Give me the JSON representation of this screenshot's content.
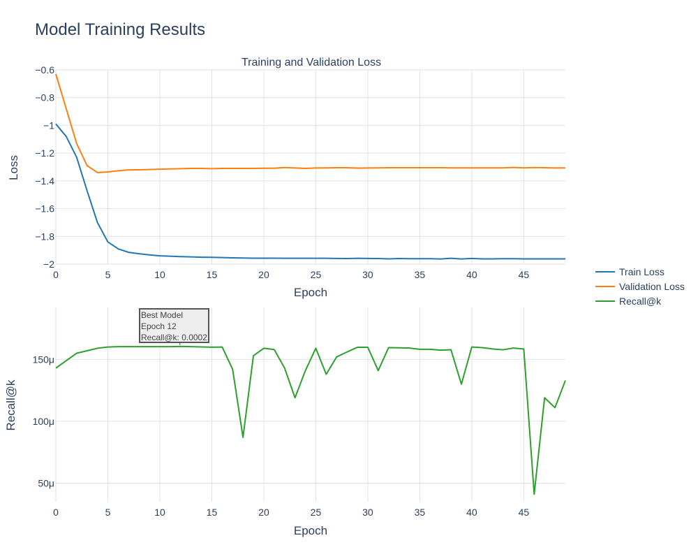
{
  "page": {
    "title": "Model Training Results"
  },
  "legend": {
    "placement": "right"
  },
  "chart_data": [
    {
      "type": "line",
      "title": "Training and Validation Loss",
      "xlabel": "Epoch",
      "ylabel": "Loss",
      "xlim": [
        0,
        49
      ],
      "ylim": [
        -2.0,
        -0.6
      ],
      "xticks": [
        0,
        5,
        10,
        15,
        20,
        25,
        30,
        35,
        40,
        45
      ],
      "xtick_labels": [
        "0",
        "5",
        "10",
        "15",
        "20",
        "25",
        "30",
        "35",
        "40",
        "45"
      ],
      "yticks": [
        -2.0,
        -1.8,
        -1.6,
        -1.4,
        -1.2,
        -1.0,
        -0.8,
        -0.6
      ],
      "ytick_labels": [
        "−2",
        "−1.8",
        "−1.6",
        "−1.4",
        "−1.2",
        "−1",
        "−0.8",
        "−0.6"
      ],
      "grid": true,
      "x": [
        0,
        1,
        2,
        3,
        4,
        5,
        6,
        7,
        8,
        9,
        10,
        11,
        12,
        13,
        14,
        15,
        16,
        17,
        18,
        19,
        20,
        21,
        22,
        23,
        24,
        25,
        26,
        27,
        28,
        29,
        30,
        31,
        32,
        33,
        34,
        35,
        36,
        37,
        38,
        39,
        40,
        41,
        42,
        43,
        44,
        45,
        46,
        47,
        48,
        49
      ],
      "series": [
        {
          "name": "Train Loss",
          "color": "#1f77b4",
          "values": [
            -0.99,
            -1.08,
            -1.23,
            -1.47,
            -1.7,
            -1.84,
            -1.89,
            -1.915,
            -1.925,
            -1.933,
            -1.94,
            -1.943,
            -1.946,
            -1.948,
            -1.95,
            -1.951,
            -1.953,
            -1.955,
            -1.956,
            -1.957,
            -1.957,
            -1.957,
            -1.958,
            -1.958,
            -1.958,
            -1.958,
            -1.958,
            -1.959,
            -1.96,
            -1.958,
            -1.959,
            -1.96,
            -1.962,
            -1.96,
            -1.961,
            -1.961,
            -1.961,
            -1.963,
            -1.958,
            -1.963,
            -1.959,
            -1.962,
            -1.962,
            -1.961,
            -1.961,
            -1.962,
            -1.962,
            -1.962,
            -1.962,
            -1.962
          ]
        },
        {
          "name": "Validation Loss",
          "color": "#ff7f0e",
          "values": [
            -0.63,
            -0.88,
            -1.13,
            -1.29,
            -1.34,
            -1.335,
            -1.327,
            -1.321,
            -1.32,
            -1.318,
            -1.316,
            -1.314,
            -1.312,
            -1.31,
            -1.31,
            -1.312,
            -1.31,
            -1.31,
            -1.31,
            -1.31,
            -1.309,
            -1.309,
            -1.304,
            -1.307,
            -1.31,
            -1.307,
            -1.306,
            -1.305,
            -1.305,
            -1.308,
            -1.307,
            -1.306,
            -1.305,
            -1.305,
            -1.305,
            -1.305,
            -1.305,
            -1.305,
            -1.306,
            -1.306,
            -1.306,
            -1.306,
            -1.306,
            -1.306,
            -1.303,
            -1.306,
            -1.304,
            -1.305,
            -1.307,
            -1.306
          ]
        }
      ]
    },
    {
      "type": "line",
      "title": "",
      "xlabel": "Epoch",
      "ylabel": "Recall@k",
      "xlim": [
        0,
        49
      ],
      "ylim": [
        3.5e-05,
        0.000192
      ],
      "xticks": [
        0,
        5,
        10,
        15,
        20,
        25,
        30,
        35,
        40,
        45
      ],
      "xtick_labels": [
        "0",
        "5",
        "10",
        "15",
        "20",
        "25",
        "30",
        "35",
        "40",
        "45"
      ],
      "yticks": [
        5e-05,
        0.0001,
        0.00015
      ],
      "ytick_labels": [
        "50μ",
        "100μ",
        "150μ"
      ],
      "grid": true,
      "x": [
        0,
        1,
        2,
        3,
        4,
        5,
        6,
        7,
        8,
        9,
        10,
        11,
        12,
        13,
        14,
        15,
        16,
        17,
        18,
        19,
        20,
        21,
        22,
        23,
        24,
        25,
        26,
        27,
        28,
        29,
        30,
        31,
        32,
        33,
        34,
        35,
        36,
        37,
        38,
        39,
        40,
        41,
        42,
        43,
        44,
        45,
        46,
        47,
        48,
        49
      ],
      "series": [
        {
          "name": "Recall@k",
          "color": "#2ca02c",
          "values": [
            0.000143,
            0.000149,
            0.000155,
            0.000157,
            0.000159,
            0.00016,
            0.0001603,
            0.0001603,
            0.0001603,
            0.0001603,
            0.0001603,
            0.0001603,
            0.0001605,
            0.0001603,
            0.0001601,
            0.0001599,
            0.00016,
            0.000142,
            8.7e-05,
            0.000153,
            0.000159,
            0.000158,
            0.000143,
            0.000119,
            0.000141,
            0.000159,
            0.000138,
            0.000152,
            0.000156,
            0.0001598,
            0.0001598,
            0.000141,
            0.0001595,
            0.0001594,
            0.0001592,
            0.0001582,
            0.0001582,
            0.0001575,
            0.0001578,
            0.00013,
            0.00016,
            0.0001595,
            0.0001585,
            0.0001578,
            0.0001592,
            0.0001584,
            4.1e-05,
            0.000119,
            0.000111,
            0.000133
          ]
        }
      ],
      "annotation": {
        "x": 12,
        "y": 0.0001605,
        "lines": [
          "Best Model",
          "Epoch 12",
          "Recall@k: 0.0002"
        ]
      }
    }
  ]
}
